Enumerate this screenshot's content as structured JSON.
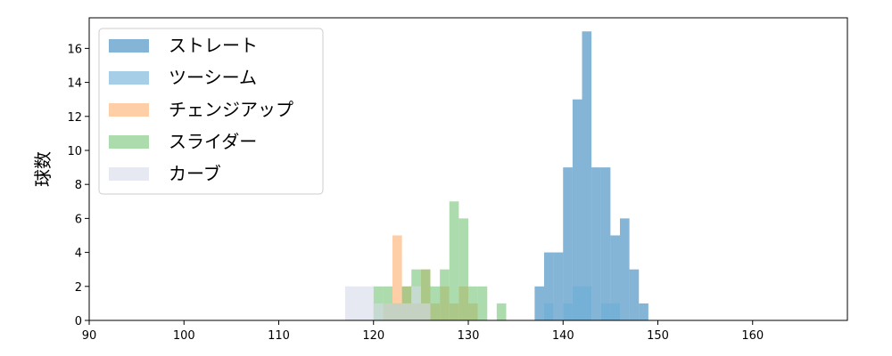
{
  "chart_data": {
    "type": "bar",
    "subtype": "histogram",
    "ylabel": "球数",
    "xlabel": "",
    "xlim": [
      90,
      170
    ],
    "ylim": [
      0,
      17.8
    ],
    "xticks": [
      90,
      100,
      110,
      120,
      130,
      140,
      150,
      160
    ],
    "yticks": [
      0,
      2,
      4,
      6,
      8,
      10,
      12,
      14,
      16
    ],
    "grid": false,
    "legend_position": "top-left",
    "series": [
      {
        "name": "ストレート",
        "color": "#1f77b4",
        "opacity": 0.55,
        "bins": [
          {
            "x0": 137.0,
            "x1": 138.0,
            "value": 2
          },
          {
            "x0": 138.0,
            "x1": 139.0,
            "value": 4
          },
          {
            "x0": 139.0,
            "x1": 140.0,
            "value": 4
          },
          {
            "x0": 140.0,
            "x1": 141.0,
            "value": 9
          },
          {
            "x0": 141.0,
            "x1": 142.0,
            "value": 13
          },
          {
            "x0": 142.0,
            "x1": 143.0,
            "value": 17
          },
          {
            "x0": 143.0,
            "x1": 144.0,
            "value": 9
          },
          {
            "x0": 144.0,
            "x1": 145.0,
            "value": 9
          },
          {
            "x0": 145.0,
            "x1": 146.0,
            "value": 5
          },
          {
            "x0": 146.0,
            "x1": 147.0,
            "value": 6
          },
          {
            "x0": 147.0,
            "x1": 148.0,
            "value": 3
          },
          {
            "x0": 148.0,
            "x1": 149.0,
            "value": 1
          }
        ]
      },
      {
        "name": "ツーシーム",
        "color": "#6baed6",
        "opacity": 0.6,
        "bins": [
          {
            "x0": 138.0,
            "x1": 139.0,
            "value": 1
          },
          {
            "x0": 140.0,
            "x1": 141.0,
            "value": 1
          },
          {
            "x0": 141.0,
            "x1": 143.0,
            "value": 2
          },
          {
            "x0": 144.0,
            "x1": 146.0,
            "value": 1
          }
        ]
      },
      {
        "name": "チェンジアップ",
        "color": "#fdae6b",
        "opacity": 0.6,
        "bins": [
          {
            "x0": 121.0,
            "x1": 122.0,
            "value": 1
          },
          {
            "x0": 122.0,
            "x1": 123.0,
            "value": 5
          },
          {
            "x0": 123.0,
            "x1": 124.0,
            "value": 2
          },
          {
            "x0": 124.0,
            "x1": 125.0,
            "value": 1
          },
          {
            "x0": 125.0,
            "x1": 126.0,
            "value": 3
          },
          {
            "x0": 126.0,
            "x1": 127.0,
            "value": 1
          },
          {
            "x0": 127.0,
            "x1": 128.0,
            "value": 2
          },
          {
            "x0": 128.0,
            "x1": 129.0,
            "value": 1
          },
          {
            "x0": 129.0,
            "x1": 130.0,
            "value": 2
          },
          {
            "x0": 130.0,
            "x1": 131.0,
            "value": 1
          }
        ]
      },
      {
        "name": "スライダー",
        "color": "#74c476",
        "opacity": 0.6,
        "bins": [
          {
            "x0": 120.0,
            "x1": 121.0,
            "value": 2
          },
          {
            "x0": 121.0,
            "x1": 122.0,
            "value": 2
          },
          {
            "x0": 122.0,
            "x1": 123.0,
            "value": 1
          },
          {
            "x0": 123.0,
            "x1": 124.0,
            "value": 2
          },
          {
            "x0": 124.0,
            "x1": 125.0,
            "value": 3
          },
          {
            "x0": 125.0,
            "x1": 126.0,
            "value": 3
          },
          {
            "x0": 126.0,
            "x1": 127.0,
            "value": 2
          },
          {
            "x0": 127.0,
            "x1": 128.0,
            "value": 3
          },
          {
            "x0": 128.0,
            "x1": 129.0,
            "value": 7
          },
          {
            "x0": 129.0,
            "x1": 130.0,
            "value": 6
          },
          {
            "x0": 130.0,
            "x1": 131.0,
            "value": 2
          },
          {
            "x0": 131.0,
            "x1": 132.0,
            "value": 2
          },
          {
            "x0": 133.0,
            "x1": 134.0,
            "value": 1
          }
        ]
      },
      {
        "name": "カーブ",
        "color": "#d6d8ea",
        "opacity": 0.6,
        "bins": [
          {
            "x0": 117.0,
            "x1": 120.0,
            "value": 2
          },
          {
            "x0": 120.0,
            "x1": 124.0,
            "value": 1
          },
          {
            "x0": 124.0,
            "x1": 125.0,
            "value": 2
          },
          {
            "x0": 125.0,
            "x1": 126.0,
            "value": 1
          }
        ]
      }
    ]
  }
}
